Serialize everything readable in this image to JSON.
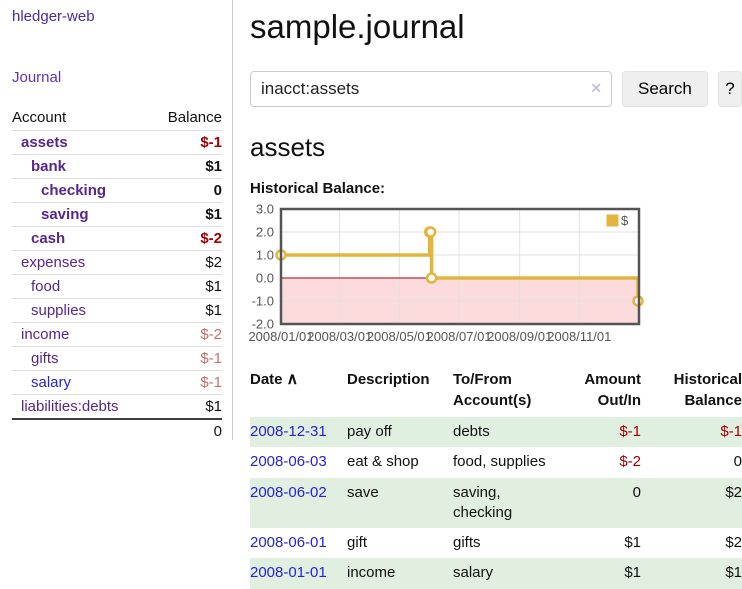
{
  "app": {
    "title": "hledger-web"
  },
  "sidebar": {
    "journal_link": "Journal",
    "table": {
      "account_header": "Account",
      "balance_header": "Balance",
      "accounts": [
        {
          "name": "assets",
          "level": 1,
          "bold": true,
          "balance": "$-1"
        },
        {
          "name": "bank",
          "level": 2,
          "bold": true,
          "balance": "$1"
        },
        {
          "name": "checking",
          "level": 3,
          "bold": true,
          "balance": "0"
        },
        {
          "name": "saving",
          "level": 3,
          "bold": true,
          "balance": "$1"
        },
        {
          "name": "cash",
          "level": 2,
          "bold": true,
          "balance": "$-2"
        },
        {
          "name": "expenses",
          "level": 1,
          "bold": false,
          "balance": "$2"
        },
        {
          "name": "food",
          "level": 2,
          "bold": false,
          "balance": "$1"
        },
        {
          "name": "supplies",
          "level": 2,
          "bold": false,
          "balance": "$1"
        },
        {
          "name": "income",
          "level": 1,
          "bold": false,
          "balance": "$-2"
        },
        {
          "name": "gifts",
          "level": 2,
          "bold": false,
          "balance": "$-1"
        },
        {
          "name": "salary",
          "level": 2,
          "bold": false,
          "balance": "$-1",
          "blue": true
        },
        {
          "name": "liabilities:debts",
          "level": 1,
          "bold": false,
          "balance": "$1"
        }
      ],
      "total": "0"
    }
  },
  "main": {
    "title": "sample.journal",
    "search": {
      "value": "inacct:assets",
      "clear_icon": "✕",
      "button": "Search",
      "help_button": "?"
    },
    "section_title": "assets",
    "chart_label": "Historical Balance:",
    "register": {
      "headers": {
        "date": "Date",
        "date_sort_icon": "∧",
        "description": "Description",
        "accounts": "To/From Account(s)",
        "amount": "Amount Out/In",
        "balance": "Historical Balance"
      },
      "rows": [
        {
          "date": "2008-12-31",
          "description": "pay off",
          "accounts": "debts",
          "amount": "$-1",
          "balance": "$-1"
        },
        {
          "date": "2008-06-03",
          "description": "eat & shop",
          "accounts": "food, supplies",
          "amount": "$-2",
          "balance": "0"
        },
        {
          "date": "2008-06-02",
          "description": "save",
          "accounts": "saving, checking",
          "amount": "0",
          "balance": "$2"
        },
        {
          "date": "2008-06-01",
          "description": "gift",
          "accounts": "gifts",
          "amount": "$1",
          "balance": "$2"
        },
        {
          "date": "2008-01-01",
          "description": "income",
          "accounts": "salary",
          "amount": "$1",
          "balance": "$1"
        }
      ]
    }
  },
  "colors": {
    "purple": "#56268f",
    "purple-title": "#4b2b9e",
    "purple-link": "#5c35b3",
    "blue-link": "#2424d6",
    "neg-strong": "#a40000",
    "neg-muted": "#c07070",
    "stripe": "#e1efe0",
    "gold": "#e3b53e",
    "pink": "#fbdbdb",
    "zero": "#a40000"
  },
  "chart_data": {
    "type": "line",
    "title": "Historical Balance:",
    "series": [
      {
        "name": "$",
        "step": true,
        "color": "#e3b53e",
        "x": [
          "2008-01-01",
          "2008-06-01",
          "2008-06-02",
          "2008-06-03",
          "2008-12-31"
        ],
        "y": [
          1,
          2,
          2,
          0,
          -1
        ]
      }
    ],
    "x_domain": [
      "2008-01-01",
      "2009-01-01"
    ],
    "x_ticks": [
      "2008/01/01",
      "2008/03/01",
      "2008/05/01",
      "2008/07/01",
      "2008/09/01",
      "2008/11/01"
    ],
    "y_ticks": [
      "3.0",
      "2.0",
      "1.0",
      "0.0",
      "-1.0",
      "-2.0"
    ],
    "ylim": [
      -2,
      3
    ],
    "legend": "$",
    "grid": true,
    "legend_position": "top-right",
    "negative_fill": "#fbdbdb",
    "zero_line_color": "#a40000"
  }
}
